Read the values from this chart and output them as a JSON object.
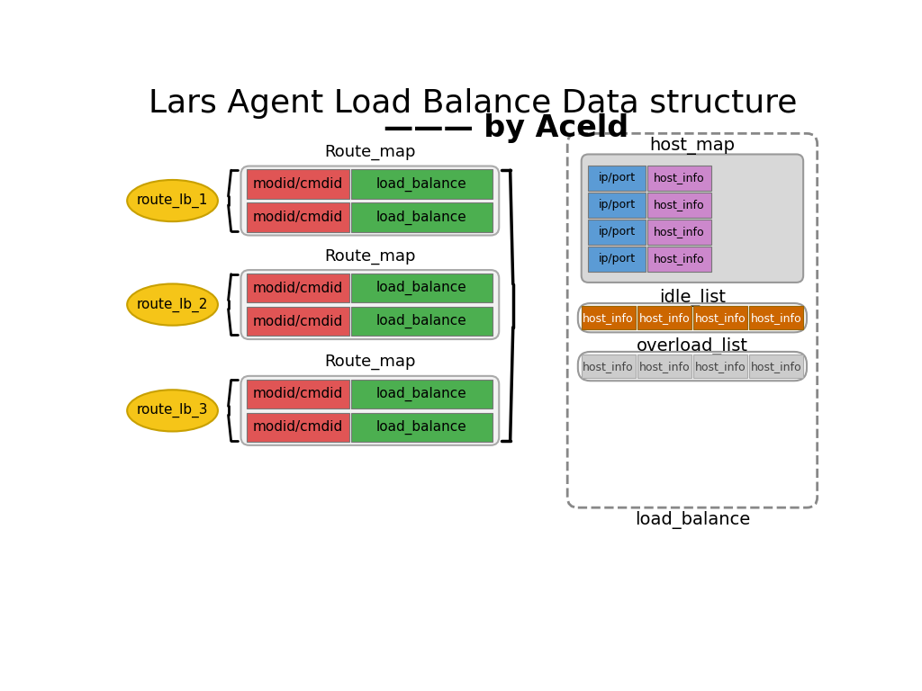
{
  "title_line1": "Lars Agent Load Balance Data structure",
  "title_line2": "——— by Aceld",
  "title_fontsize": 26,
  "subtitle_fontsize": 24,
  "bg_color": "#ffffff",
  "ellipse_color": "#F5C518",
  "route_labels": [
    "route_lb_1",
    "route_lb_2",
    "route_lb_3"
  ],
  "route_map_label": "Route_map",
  "modid_color": "#E05555",
  "lb_color": "#4CAF50",
  "modid_text": "modid/cmdid",
  "lb_text": "load_balance",
  "host_map_label": "host_map",
  "ip_color": "#5B9BD5",
  "host_info_color": "#CC88CC",
  "ip_text": "ip/port",
  "host_info_text": "host_info",
  "idle_list_label": "idle_list",
  "idle_color": "#CC6600",
  "overload_list_label": "overload_list",
  "overload_color": "#CCCCCC",
  "load_balance_label": "load_balance",
  "dashed_box_color": "#888888",
  "cell_fontsize": 11,
  "label_fontsize": 13
}
